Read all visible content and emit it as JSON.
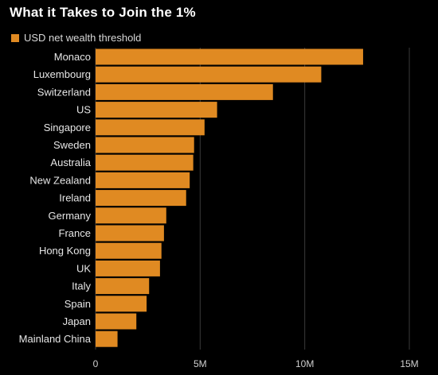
{
  "chart_data": {
    "type": "bar",
    "orientation": "horizontal",
    "title": "What it Takes to Join the 1%",
    "xlabel": "",
    "ylabel": "",
    "legend": [
      {
        "label": "USD net wealth threshold",
        "color": "#e08a22"
      }
    ],
    "legend_position": "top-left",
    "categories": [
      "Monaco",
      "Luxembourg",
      "Switzerland",
      "US",
      "Singapore",
      "Sweden",
      "Australia",
      "New Zealand",
      "Ireland",
      "Germany",
      "France",
      "Hong Kong",
      "UK",
      "Italy",
      "Spain",
      "Japan",
      "Mainland China"
    ],
    "values": [
      12790000,
      10790000,
      8480000,
      5810000,
      5210000,
      4710000,
      4670000,
      4500000,
      4330000,
      3380000,
      3270000,
      3150000,
      3080000,
      2560000,
      2440000,
      1950000,
      1050000
    ],
    "xlim": [
      0,
      15000000
    ],
    "xticks": [
      {
        "value": 0,
        "label": "0"
      },
      {
        "value": 5000000,
        "label": "5M"
      },
      {
        "value": 10000000,
        "label": "10M"
      },
      {
        "value": 15000000,
        "label": "15M"
      }
    ],
    "grid": true,
    "bar_color": "#e08a22",
    "grid_color": "#3a3a3a",
    "background": "#000000"
  }
}
